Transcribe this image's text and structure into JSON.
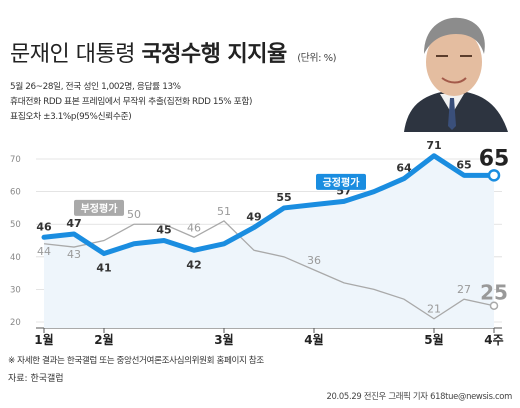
{
  "header": {
    "title_light": "문재인 대통령",
    "title_bold": "국정수행 지지율",
    "unit": "(단위: %)"
  },
  "meta": {
    "line1": "5월 26~28일, 전국 성인 1,002명, 응답률 13%",
    "line2": "휴대전화 RDD 표본 프레임에서 무작위 추출(집전화 RDD 15% 포함)",
    "line3": "표집오차 ±3.1%p(95%신뢰수준)"
  },
  "chart_data": {
    "type": "line",
    "categories": [
      "1월",
      "",
      "2월",
      "",
      "",
      "",
      "3월",
      "",
      "",
      "4월",
      "",
      "",
      "",
      "5월",
      "",
      "4주"
    ],
    "x_axis_labels": [
      "1월",
      "2월",
      "3월",
      "4월",
      "5월",
      "4주"
    ],
    "y_ticks": [
      20,
      30,
      40,
      50,
      60,
      70
    ],
    "ylim": [
      20,
      74
    ],
    "grid": true,
    "series": [
      {
        "name": "긍정평가",
        "color": "#1a8de0",
        "values": [
          46,
          47,
          41,
          44,
          45,
          42,
          44,
          49,
          55,
          56,
          57,
          60,
          64,
          71,
          65,
          65
        ],
        "labels": [
          "46",
          "47",
          "41",
          "",
          "45",
          "42",
          "",
          "49",
          "55",
          "",
          "57",
          "",
          "64",
          "71",
          "65",
          "65"
        ]
      },
      {
        "name": "부정평가",
        "color": "#a9a9a9",
        "values": [
          44,
          43,
          45,
          50,
          50,
          46,
          51,
          42,
          40,
          36,
          32,
          30,
          27,
          21,
          27,
          25
        ],
        "labels": [
          "44",
          "43",
          "",
          "50",
          "",
          "46",
          "51",
          "",
          "",
          "36",
          "",
          "",
          "",
          "21",
          "27",
          "25"
        ]
      }
    ]
  },
  "footer": {
    "note": "※ 자세한 결과는 한국갤럽 또는 중앙선거여론조사심의위원회 홈페이지 참조",
    "source": "자료: 한국갤럽",
    "credit": "20.05.29 전진우 그래픽 기자 618tue@newsis.com"
  },
  "colors": {
    "positive": "#1a8de0",
    "negative": "#a9a9a9",
    "label_box": "#1a8de0"
  }
}
